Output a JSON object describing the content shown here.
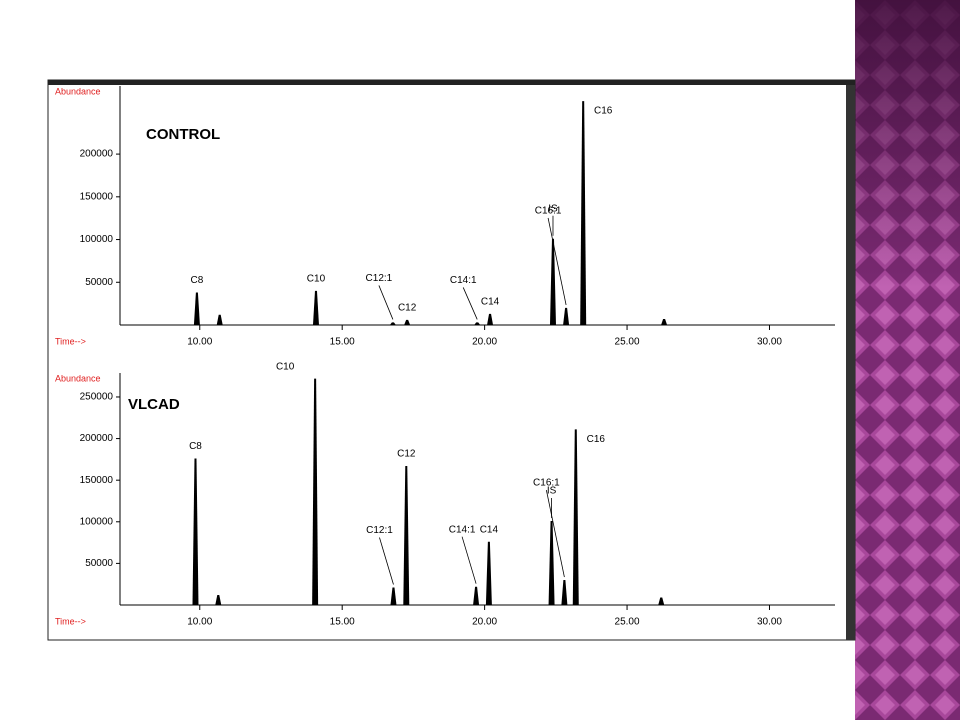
{
  "chart_data": [
    {
      "type": "peaks",
      "title": "CONTROL",
      "y_label": "Abundance",
      "x_label": "Time-->",
      "color": "#000000",
      "x": [
        9.9,
        10.7,
        14.08,
        16.78,
        17.28,
        19.74,
        20.19,
        22.4,
        22.86,
        23.46,
        26.3
      ],
      "values": [
        38000,
        12000,
        40000,
        3000,
        6000,
        3000,
        13000,
        101000,
        20000,
        262000,
        7000
      ],
      "peak_labels": [
        "C8",
        null,
        "C10",
        "C12:1",
        "C12",
        "C14:1",
        "C14",
        "IS",
        "C16:1",
        "C16",
        null
      ],
      "xlim": [
        7.2,
        32.3
      ],
      "ylim": [
        0,
        275000
      ],
      "xticks": [
        {
          "value": 10,
          "label": "10.00"
        },
        {
          "value": 15,
          "label": "15.00"
        },
        {
          "value": 20,
          "label": "20.00"
        },
        {
          "value": 25,
          "label": "25.00"
        },
        {
          "value": 30,
          "label": "30.00"
        }
      ],
      "yticks": [
        50000,
        100000,
        150000,
        200000
      ]
    },
    {
      "type": "peaks",
      "title": "VLCAD",
      "y_label": "Abundance",
      "x_label": "Time-->",
      "color": "#000000",
      "x": [
        9.85,
        10.65,
        14.05,
        16.8,
        17.25,
        19.7,
        20.15,
        22.35,
        22.8,
        23.2,
        26.2
      ],
      "values": [
        176000,
        12000,
        272000,
        21000,
        167000,
        22000,
        76000,
        101000,
        30000,
        211000,
        9000
      ],
      "peak_labels": [
        "C8",
        null,
        "C10",
        "C12:1",
        "C12",
        "C14:1",
        "C14",
        "IS",
        "C16:1",
        "C16",
        null
      ],
      "xlim": [
        7.2,
        32.3
      ],
      "ylim": [
        0,
        274000
      ],
      "xticks": [
        {
          "value": 10,
          "label": "10.00"
        },
        {
          "value": 15,
          "label": "15.00"
        },
        {
          "value": 20,
          "label": "20.00"
        },
        {
          "value": 25,
          "label": "25.00"
        },
        {
          "value": 30,
          "label": "30.00"
        }
      ],
      "yticks": [
        50000,
        100000,
        150000,
        200000,
        250000
      ]
    }
  ]
}
